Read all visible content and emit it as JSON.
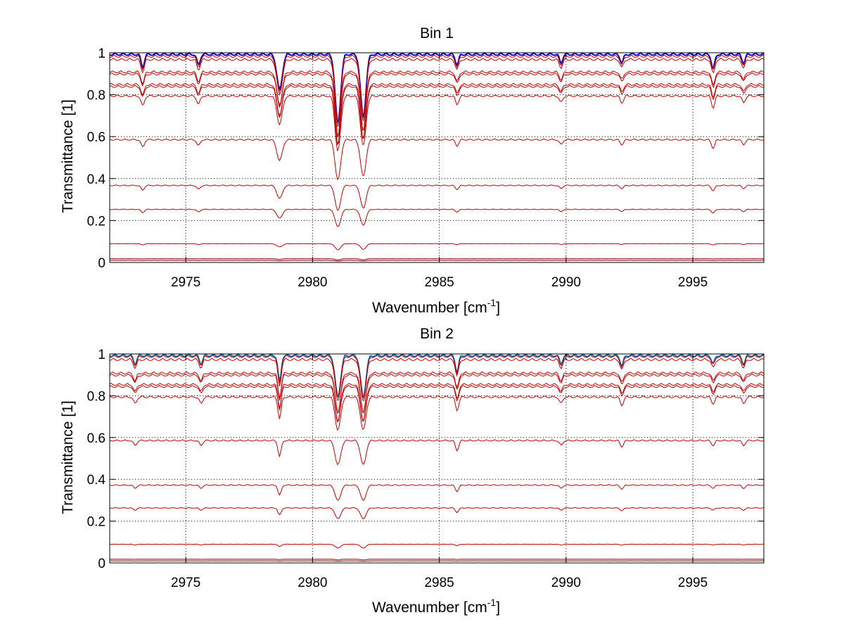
{
  "chart_data": [
    {
      "type": "line",
      "title": "Bin 1",
      "xlabel": "Wavenumber [cm",
      "xlabel_sup": "-1",
      "xlabel_end": "]",
      "ylabel": "Transmittance [1]",
      "xlim": [
        2972,
        2997.8
      ],
      "ylim": [
        0,
        1
      ],
      "xticks": [
        2975,
        2980,
        2985,
        2990,
        2995
      ],
      "xtick_labels": [
        "2975",
        "2980",
        "2985",
        "2990",
        "2995"
      ],
      "yticks": [
        0,
        0.2,
        0.4,
        0.6,
        0.8,
        1
      ],
      "ytick_labels": [
        "0",
        "0.2",
        "0.4",
        "0.6",
        "0.8",
        "1"
      ],
      "grid": true,
      "line_color": "#c00000",
      "top_line_color": "#0000cc",
      "series_baselines": [
        1.0,
        0.99,
        0.975,
        0.915,
        0.905,
        0.855,
        0.845,
        0.8,
        0.59,
        0.37,
        0.255,
        0.09,
        0.018,
        0.01
      ],
      "absorption_lines": [
        {
          "x": 2973.3,
          "depth": 0.06
        },
        {
          "x": 2975.5,
          "depth": 0.05
        },
        {
          "x": 2978.7,
          "depth": 0.17
        },
        {
          "x": 2981.0,
          "depth": 0.33
        },
        {
          "x": 2982.0,
          "depth": 0.3
        },
        {
          "x": 2985.7,
          "depth": 0.05
        },
        {
          "x": 2989.8,
          "depth": 0.04
        },
        {
          "x": 2992.2,
          "depth": 0.04
        },
        {
          "x": 2995.8,
          "depth": 0.07
        },
        {
          "x": 2997.0,
          "depth": 0.04
        }
      ]
    },
    {
      "type": "line",
      "title": "Bin 2",
      "xlabel": "Wavenumber [cm",
      "xlabel_sup": "-1",
      "xlabel_end": "]",
      "ylabel": "Transmittance [1]",
      "xlim": [
        2972,
        2997.8
      ],
      "ylim": [
        0,
        1
      ],
      "xticks": [
        2975,
        2980,
        2985,
        2990,
        2995
      ],
      "xtick_labels": [
        "2975",
        "2980",
        "2985",
        "2990",
        "2995"
      ],
      "yticks": [
        0,
        0.2,
        0.4,
        0.6,
        0.8,
        1
      ],
      "ytick_labels": [
        "0",
        "0.2",
        "0.4",
        "0.6",
        "0.8",
        "1"
      ],
      "grid": true,
      "line_color": "#c00000",
      "top_line_color": "#0070c0",
      "series_baselines": [
        1.0,
        0.995,
        0.98,
        0.915,
        0.905,
        0.86,
        0.85,
        0.8,
        0.59,
        0.375,
        0.265,
        0.09,
        0.018,
        0.01
      ],
      "absorption_lines": [
        {
          "x": 2973.0,
          "depth": 0.04
        },
        {
          "x": 2975.6,
          "depth": 0.04
        },
        {
          "x": 2978.7,
          "depth": 0.13
        },
        {
          "x": 2981.0,
          "depth": 0.2
        },
        {
          "x": 2982.0,
          "depth": 0.2
        },
        {
          "x": 2985.7,
          "depth": 0.08
        },
        {
          "x": 2989.8,
          "depth": 0.04
        },
        {
          "x": 2992.2,
          "depth": 0.05
        },
        {
          "x": 2995.8,
          "depth": 0.04
        },
        {
          "x": 2997.0,
          "depth": 0.04
        }
      ]
    }
  ]
}
